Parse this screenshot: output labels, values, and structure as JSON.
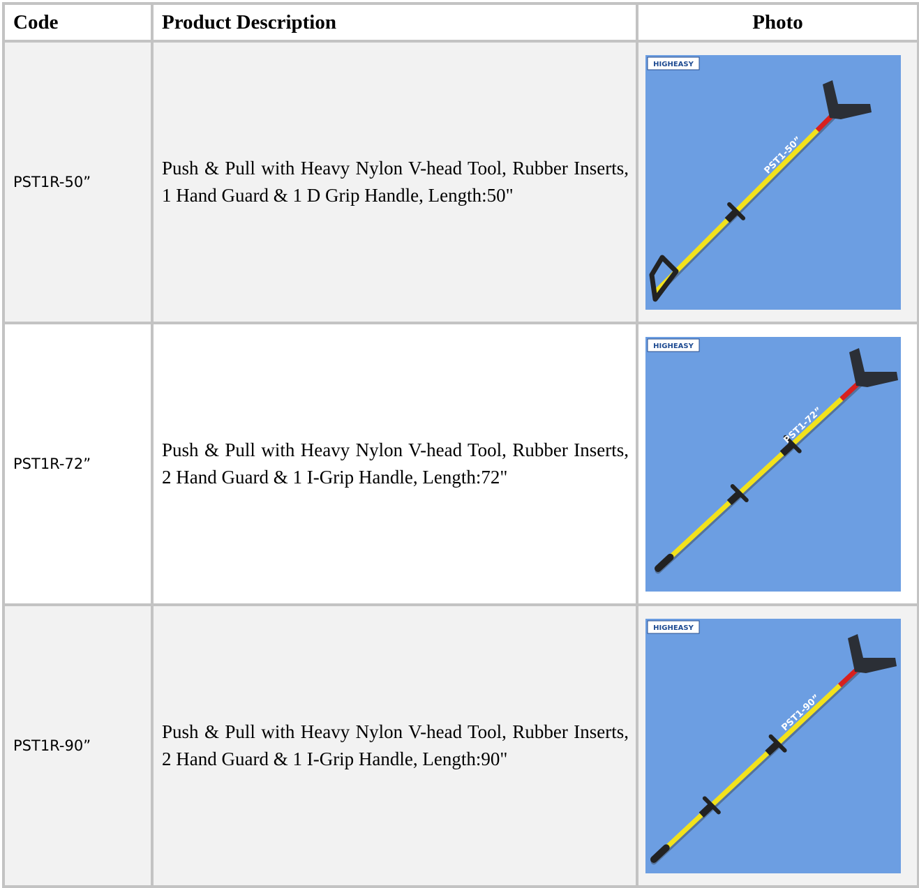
{
  "table": {
    "header": [
      "Code",
      "Product Description",
      "Photo"
    ],
    "rows": [
      {
        "code": "PST1R-50”",
        "description": "Push & Pull with Heavy Nylon V-head Tool, Rubber Inserts, 1 Hand Guard & 1 D Grip Handle, Length:50\"",
        "photo": {
          "brand": "HIGHEASY",
          "label": "PST1-50”"
        }
      },
      {
        "code": "PST1R-72”",
        "description": "Push & Pull with Heavy Nylon V-head Tool, Rubber Inserts, 2 Hand Guard & 1 I-Grip Handle, Length:72\"",
        "photo": {
          "brand": "HIGHEASY",
          "label": "PST1-72”"
        }
      },
      {
        "code": "PST1R-90”",
        "description": "Push & Pull with Heavy Nylon V-head Tool, Rubber Inserts, 2 Hand Guard & 1 I-Grip Handle, Length:90\"",
        "photo": {
          "brand": "HIGHEASY",
          "label": "PST1-90”"
        }
      }
    ]
  }
}
